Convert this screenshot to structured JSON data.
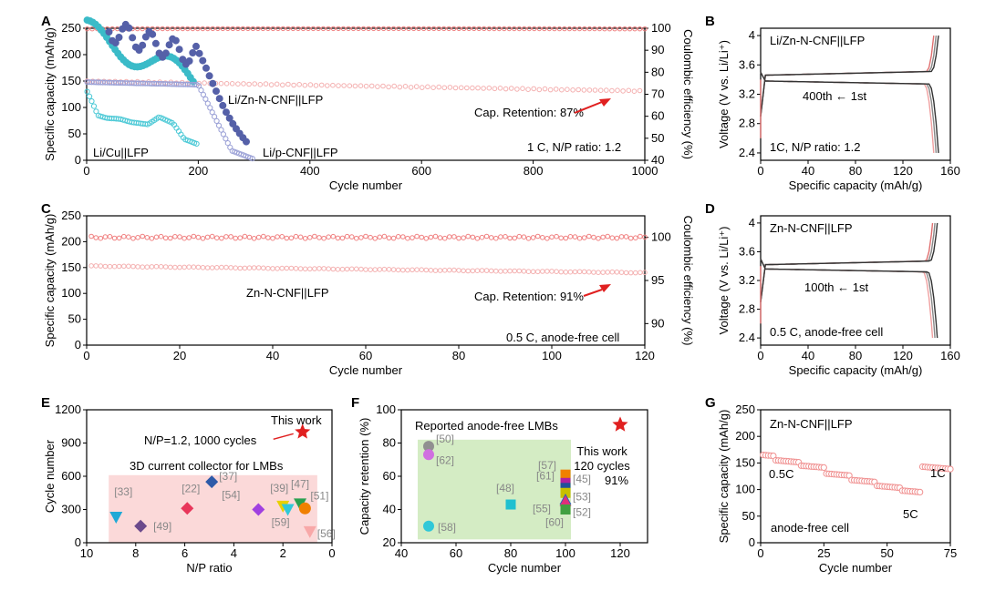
{
  "chart_data": [
    {
      "id": "A",
      "panel_label": "A",
      "type": "scatter",
      "xlabel": "Cycle number",
      "ylabel": "Specific capacity (mAh/g)",
      "y2label": "Coulombic efficiency (%)",
      "xlim": [
        0,
        1000
      ],
      "ylim": [
        0,
        250
      ],
      "y2lim": [
        40,
        100
      ],
      "xticks": [
        0,
        200,
        400,
        600,
        800,
        1000
      ],
      "yticks": [
        0,
        50,
        100,
        150,
        200,
        250
      ],
      "y2ticks": [
        40,
        50,
        60,
        70,
        80,
        90,
        100
      ],
      "series": [
        {
          "name": "Li/Zn-N-CNF||LFP CE",
          "axis": "y2",
          "color": "#f08080",
          "from": 1,
          "to": 1000,
          "start": 99.5,
          "end": 99.5
        },
        {
          "name": "Li/Zn-N-CNF||LFP capacity",
          "axis": "y",
          "color": "#f4b0b0",
          "from": 1,
          "to": 1000,
          "start": 150,
          "end": 131
        },
        {
          "name": "Li/Cu||LFP capacity",
          "axis": "y",
          "color": "#4cc9d6",
          "from": 1,
          "to": 200,
          "start": 130,
          "end": 30
        },
        {
          "name": "Li/p-CNF||LFP capacity",
          "axis": "y",
          "color": "#9aa0d6",
          "from": 1,
          "to": 300,
          "start": 148,
          "end": 2
        }
      ],
      "annotations": [
        "Li/Zn-N-CNF||LFP",
        "Cap. Retention: 87%",
        "Li/Cu||LFP",
        "Li/p-CNF||LFP",
        "1 C, N/P ratio: 1.2"
      ]
    },
    {
      "id": "B",
      "panel_label": "B",
      "type": "line",
      "xlabel": "Specific capacity (mAh/g)",
      "ylabel": "Voltage (V vs. Li/Li⁺)",
      "xlim": [
        0,
        160
      ],
      "ylim": [
        2.3,
        4.1
      ],
      "xticks": [
        0,
        40,
        80,
        120,
        160
      ],
      "yticks": [
        2.4,
        2.8,
        3.2,
        3.6,
        4.0
      ],
      "annotations": [
        "Li/Zn-N-CNF||LFP",
        "400th ← 1st",
        "1C, N/P ratio: 1.2"
      ]
    },
    {
      "id": "C",
      "panel_label": "C",
      "type": "scatter",
      "xlabel": "Cycle number",
      "ylabel": "Specific capacity (mAh/g)",
      "y2label": "Coulombic efficiency (%)",
      "xlim": [
        0,
        120
      ],
      "ylim": [
        0,
        250
      ],
      "y2lim": [
        87.5,
        102.5
      ],
      "xticks": [
        0,
        20,
        40,
        60,
        80,
        100,
        120
      ],
      "yticks": [
        0,
        50,
        100,
        150,
        200,
        250
      ],
      "y2ticks": [
        90,
        95,
        100
      ],
      "series": [
        {
          "name": "Zn-N-CNF||LFP CE",
          "axis": "y2",
          "color": "#f08080",
          "from": 1,
          "to": 120,
          "start": 100,
          "end": 99.9
        },
        {
          "name": "Zn-N-CNF||LFP capacity",
          "axis": "y",
          "color": "#f4b0b0",
          "from": 1,
          "to": 120,
          "start": 153,
          "end": 140
        }
      ],
      "annotations": [
        "Zn-N-CNF||LFP",
        "Cap. Retention: 91%",
        "0.5 C, anode-free cell"
      ]
    },
    {
      "id": "D",
      "panel_label": "D",
      "type": "line",
      "xlabel": "Specific capacity (mAh/g)",
      "ylabel": "Voltage (V vs. Li/Li⁺)",
      "xlim": [
        0,
        160
      ],
      "ylim": [
        2.3,
        4.1
      ],
      "xticks": [
        0,
        40,
        80,
        120,
        160
      ],
      "yticks": [
        2.4,
        2.8,
        3.2,
        3.6,
        4.0
      ],
      "annotations": [
        "Zn-N-CNF||LFP",
        "100th ← 1st",
        "0.5 C, anode-free cell"
      ]
    },
    {
      "id": "E",
      "panel_label": "E",
      "type": "scatter",
      "xlabel": "N/P ratio",
      "ylabel": "Cycle number",
      "xlim": [
        10,
        0
      ],
      "ylim": [
        0,
        1200
      ],
      "xticks": [
        10,
        8,
        6,
        4,
        2,
        0
      ],
      "yticks": [
        0,
        300,
        600,
        900,
        1200
      ],
      "points": [
        {
          "ref": "[33]",
          "x": 8.8,
          "y": 230,
          "color": "#1fa9d6",
          "marker": "tri-down"
        },
        {
          "ref": "[49]",
          "x": 7.8,
          "y": 150,
          "color": "#6b4a8c",
          "marker": "diamond"
        },
        {
          "ref": "[22]",
          "x": 5.9,
          "y": 310,
          "color": "#e8365a",
          "marker": "diamond"
        },
        {
          "ref": "[37]",
          "x": 4.9,
          "y": 550,
          "color": "#2e5aa8",
          "marker": "diamond"
        },
        {
          "ref": "[54]",
          "x": 3.0,
          "y": 300,
          "color": "#a040e0",
          "marker": "diamond"
        },
        {
          "ref": "[39]",
          "x": 2.0,
          "y": 330,
          "color": "#e8d000",
          "marker": "tri-down"
        },
        {
          "ref": "[59]",
          "x": 1.8,
          "y": 300,
          "color": "#30c8d8",
          "marker": "tri-down"
        },
        {
          "ref": "[47]",
          "x": 1.3,
          "y": 350,
          "color": "#2aa050",
          "marker": "tri-down"
        },
        {
          "ref": "[51]",
          "x": 1.1,
          "y": 310,
          "color": "#f08000",
          "marker": "circle"
        },
        {
          "ref": "[56]",
          "x": 0.9,
          "y": 100,
          "color": "#f8a8a8",
          "marker": "tri-down"
        },
        {
          "ref": "This work",
          "x": 1.2,
          "y": 1000,
          "color": "#e02020",
          "marker": "star"
        }
      ],
      "annotations": [
        "This work",
        "N/P=1.2, 1000 cycles",
        "3D current collector for LMBs"
      ]
    },
    {
      "id": "F",
      "panel_label": "F",
      "type": "scatter",
      "xlabel": "Cycle number",
      "ylabel": "Capacity retention (%)",
      "xlim": [
        40,
        130
      ],
      "ylim": [
        20,
        100
      ],
      "xticks": [
        40,
        60,
        80,
        100,
        120
      ],
      "yticks": [
        20,
        40,
        60,
        80,
        100
      ],
      "points": [
        {
          "ref": "[50]",
          "x": 50,
          "y": 78,
          "color": "#909090",
          "marker": "circle"
        },
        {
          "ref": "[62]",
          "x": 50,
          "y": 73,
          "color": "#d070e0",
          "marker": "circle"
        },
        {
          "ref": "[58]",
          "x": 50,
          "y": 30,
          "color": "#30c8d8",
          "marker": "circle"
        },
        {
          "ref": "[48]",
          "x": 80,
          "y": 43,
          "color": "#20c0d0",
          "marker": "square"
        },
        {
          "ref": "[57]",
          "x": 100,
          "y": 61,
          "color": "#f08000",
          "marker": "square"
        },
        {
          "ref": "[61]",
          "x": 100,
          "y": 56,
          "color": "#b020a0",
          "marker": "square"
        },
        {
          "ref": "[45]",
          "x": 100,
          "y": 53,
          "color": "#20509a",
          "marker": "square"
        },
        {
          "ref": "[53]",
          "x": 100,
          "y": 50,
          "color": "#c8c000",
          "marker": "square"
        },
        {
          "ref": "[55]",
          "x": 100,
          "y": 46,
          "color": "#2060c0",
          "marker": "tri-up"
        },
        {
          "ref": "[52]",
          "x": 100,
          "y": 45,
          "color": "#e0307a",
          "marker": "tri-up"
        },
        {
          "ref": "[60]",
          "x": 100,
          "y": 40,
          "color": "#40a040",
          "marker": "square"
        },
        {
          "ref": "This work",
          "x": 120,
          "y": 91,
          "color": "#e02020",
          "marker": "star"
        }
      ],
      "annotations": [
        "Reported anode-free LMBs",
        "This work",
        "120 cycles",
        "91%"
      ]
    },
    {
      "id": "G",
      "panel_label": "G",
      "type": "scatter",
      "xlabel": "Cycle number",
      "ylabel": "Specific capacity (mAh/g)",
      "xlim": [
        0,
        75
      ],
      "ylim": [
        0,
        250
      ],
      "xticks": [
        0,
        25,
        50,
        75
      ],
      "yticks": [
        0,
        50,
        100,
        150,
        200,
        250
      ],
      "steps": [
        {
          "from": 1,
          "to": 5,
          "value": 165
        },
        {
          "from": 6,
          "to": 15,
          "value": 155
        },
        {
          "from": 16,
          "to": 25,
          "value": 145
        },
        {
          "from": 26,
          "to": 35,
          "value": 130
        },
        {
          "from": 36,
          "to": 45,
          "value": 118
        },
        {
          "from": 46,
          "to": 55,
          "value": 107
        },
        {
          "from": 56,
          "to": 63,
          "value": 98
        },
        {
          "from": 64,
          "to": 75,
          "value": 143
        }
      ],
      "annotations": [
        "Zn-N-CNF||LFP",
        "0.5C",
        "5C",
        "1C",
        "anode-free cell"
      ]
    }
  ]
}
